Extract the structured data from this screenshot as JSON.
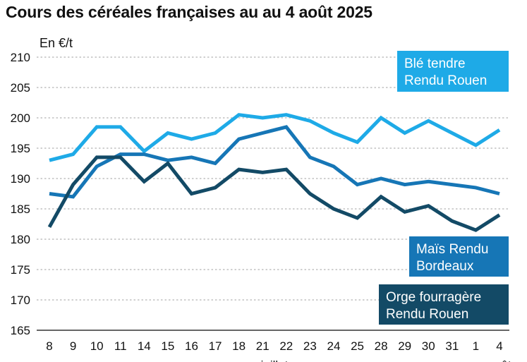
{
  "title": "Cours des céréales françaises au au 4 août 2025",
  "chart_data": {
    "type": "line",
    "title": "Cours des céréales françaises au au 4 août 2025",
    "ylabel": "En €/t",
    "xlabel": "",
    "ylim": [
      165,
      210
    ],
    "yticks": [
      210,
      205,
      200,
      195,
      190,
      185,
      180,
      175,
      170,
      165
    ],
    "categories": [
      "8",
      "9",
      "10",
      "11",
      "14",
      "15",
      "16",
      "17",
      "18",
      "21",
      "22",
      "23",
      "24",
      "25",
      "28",
      "29",
      "30",
      "31",
      "1",
      "4"
    ],
    "month_labels": [
      {
        "label": "juillet",
        "at_index": 9.5
      },
      {
        "label": "août",
        "at_index": 19
      }
    ],
    "grid": true,
    "series": [
      {
        "name": "Blé tendre Rendu Rouen",
        "label_lines": [
          "Blé tendre",
          "Rendu Rouen"
        ],
        "color": "#1eaae7",
        "values": [
          193,
          194,
          198.5,
          198.5,
          194.5,
          197.5,
          196.5,
          197.5,
          200.5,
          200,
          200.5,
          199.5,
          197.5,
          196,
          200,
          197.5,
          199.5,
          197.5,
          195.5,
          198
        ]
      },
      {
        "name": "Maïs Rendu Bordeaux",
        "label_lines": [
          "Maïs Rendu",
          "Bordeaux"
        ],
        "color": "#1676b6",
        "values": [
          187.5,
          187,
          192,
          194,
          194,
          193,
          193.5,
          192.5,
          196.5,
          197.5,
          198.5,
          193.5,
          192,
          189,
          190,
          189,
          189.5,
          189,
          188.5,
          187.5
        ]
      },
      {
        "name": "Orge fourragère Rendu Rouen",
        "label_lines": [
          "Orge fourragère",
          "Rendu Rouen"
        ],
        "color": "#134a66",
        "values": [
          182,
          189,
          193.5,
          193.5,
          189.5,
          192.5,
          187.5,
          188.5,
          191.5,
          191,
          191.5,
          187.5,
          185,
          183.5,
          187,
          184.5,
          185.5,
          183,
          181.5,
          184
        ]
      }
    ]
  }
}
